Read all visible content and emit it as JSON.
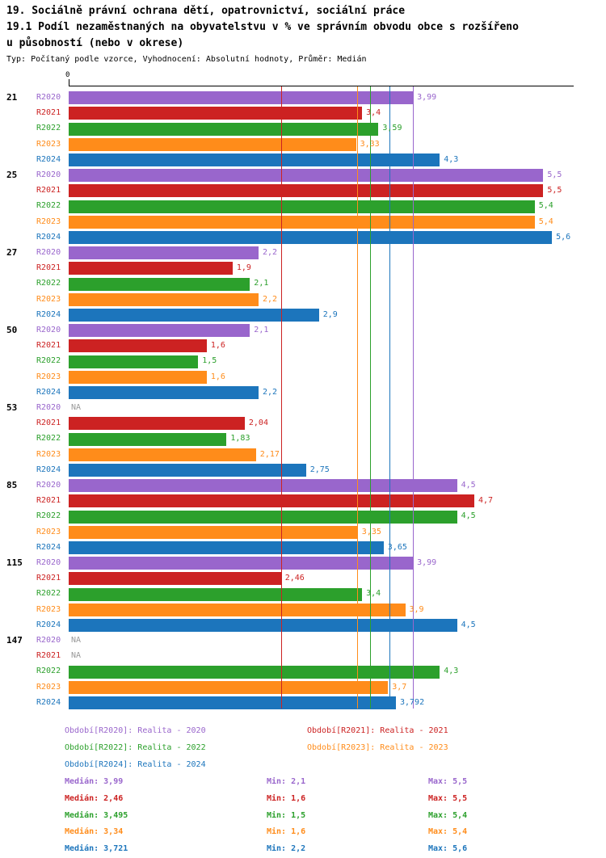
{
  "title": {
    "line1": "19. Sociálně právní ochrana dětí, opatrovnictví, sociální práce",
    "line2": "19.1 Podíl nezaměstnaných na obyvatelstvu v % ve správním obvodu obce s rozšířeno",
    "line3": "u působností (nebo v okrese)",
    "subtitle": "Typ: Počítaný podle vzorce, Vyhodnocení: Absolutní hodnoty, Průměr: Medián"
  },
  "colors": {
    "R2020": "#9966CC",
    "R2021": "#CC2222",
    "R2022": "#2CA02C",
    "R2023": "#FF8C1A",
    "R2024": "#1C75BC",
    "na": "#999999"
  },
  "chart_data": {
    "type": "bar",
    "orientation": "horizontal",
    "x_axis": {
      "min": 0,
      "max": 5.85,
      "zero_label": "0",
      "position": "top"
    },
    "series_order": [
      "R2020",
      "R2021",
      "R2022",
      "R2023",
      "R2024"
    ],
    "groups": [
      {
        "label": "21",
        "values": [
          3.99,
          3.4,
          3.59,
          3.33,
          4.3
        ],
        "labels": [
          "3,99",
          "3,4",
          "3,59",
          "3,33",
          "4,3"
        ]
      },
      {
        "label": "25",
        "values": [
          5.5,
          5.5,
          5.4,
          5.4,
          5.6
        ],
        "labels": [
          "5,5",
          "5,5",
          "5,4",
          "5,4",
          "5,6"
        ]
      },
      {
        "label": "27",
        "values": [
          2.2,
          1.9,
          2.1,
          2.2,
          2.9
        ],
        "labels": [
          "2,2",
          "1,9",
          "2,1",
          "2,2",
          "2,9"
        ]
      },
      {
        "label": "50",
        "values": [
          2.1,
          1.6,
          1.5,
          1.6,
          2.2
        ],
        "labels": [
          "2,1",
          "1,6",
          "1,5",
          "1,6",
          "2,2"
        ]
      },
      {
        "label": "53",
        "values": [
          null,
          2.04,
          1.83,
          2.17,
          2.75
        ],
        "labels": [
          "NA",
          "2,04",
          "1,83",
          "2,17",
          "2,75"
        ]
      },
      {
        "label": "85",
        "values": [
          4.5,
          4.7,
          4.5,
          3.35,
          3.65
        ],
        "labels": [
          "4,5",
          "4,7",
          "4,5",
          "3,35",
          "3,65"
        ]
      },
      {
        "label": "115",
        "values": [
          3.99,
          2.46,
          3.4,
          3.9,
          4.5
        ],
        "labels": [
          "3,99",
          "2,46",
          "3,4",
          "3,9",
          "4,5"
        ]
      },
      {
        "label": "147",
        "values": [
          null,
          null,
          4.3,
          3.7,
          3.792
        ],
        "labels": [
          "NA",
          "NA",
          "4,3",
          "3,7",
          "3,792"
        ]
      }
    ],
    "median_lines": [
      {
        "series": "R2020",
        "value": 3.99
      },
      {
        "series": "R2021",
        "value": 2.46
      },
      {
        "series": "R2022",
        "value": 3.495
      },
      {
        "series": "R2023",
        "value": 3.34
      },
      {
        "series": "R2024",
        "value": 3.721
      }
    ]
  },
  "legend": [
    {
      "series": "R2020",
      "text": "Období[R2020]: Realita - 2020"
    },
    {
      "series": "R2021",
      "text": "Období[R2021]: Realita - 2021"
    },
    {
      "series": "R2022",
      "text": "Období[R2022]: Realita - 2022"
    },
    {
      "series": "R2023",
      "text": "Období[R2023]: Realita - 2023"
    },
    {
      "series": "R2024",
      "text": "Období[R2024]: Realita - 2024"
    }
  ],
  "stats": [
    {
      "series": "R2020",
      "median": "Medián: 3,99",
      "min": "Min: 2,1",
      "max": "Max: 5,5"
    },
    {
      "series": "R2021",
      "median": "Medián: 2,46",
      "min": "Min: 1,6",
      "max": "Max: 5,5"
    },
    {
      "series": "R2022",
      "median": "Medián: 3,495",
      "min": "Min: 1,5",
      "max": "Max: 5,4"
    },
    {
      "series": "R2023",
      "median": "Medián: 3,34",
      "min": "Min: 1,6",
      "max": "Max: 5,4"
    },
    {
      "series": "R2024",
      "median": "Medián: 3,721",
      "min": "Min: 2,2",
      "max": "Max: 5,6"
    }
  ]
}
